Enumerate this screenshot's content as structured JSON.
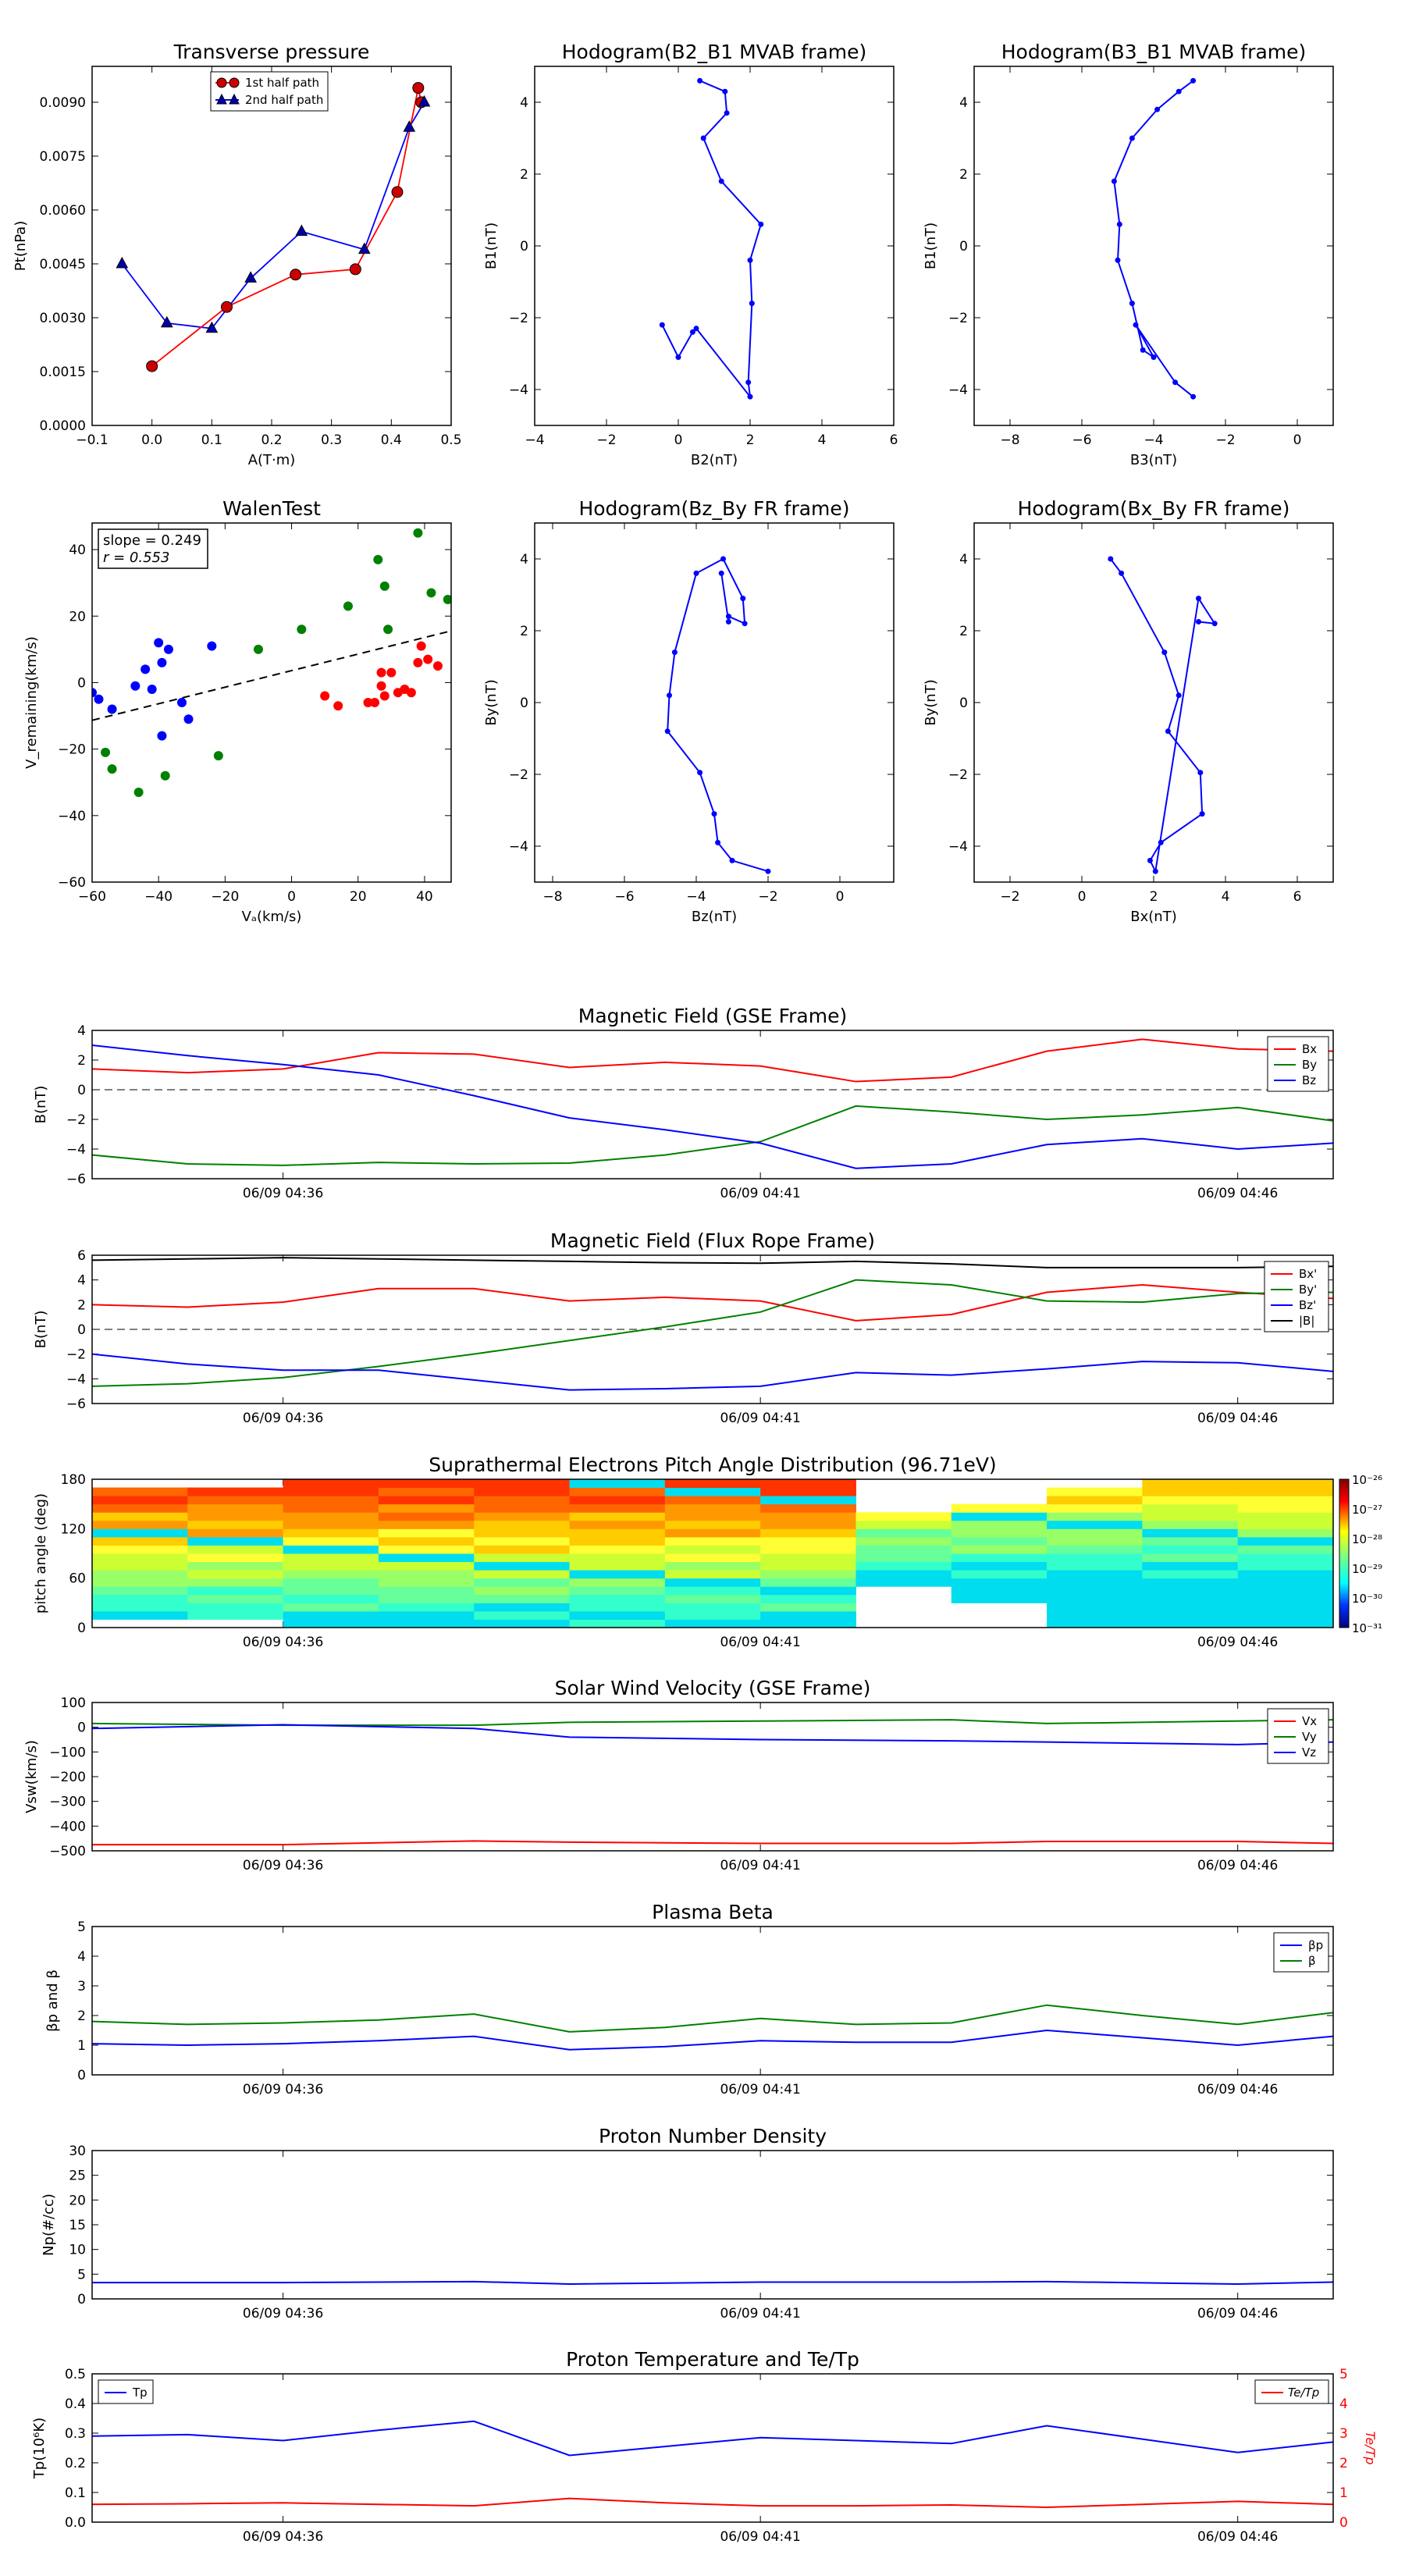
{
  "colors": {
    "red": "#ff0000",
    "green": "#008000",
    "blue": "#0000ff",
    "black": "#000000",
    "first_half": "#cc0000",
    "second_half": "#0000aa"
  },
  "panels": {
    "transverse": {
      "title": "Transverse pressure",
      "xlabel": "A(T·m)",
      "ylabel": "Pt(nPa)",
      "legend": [
        "1st half path",
        "2nd half path"
      ],
      "xticks": [
        "−0.1",
        "0.0",
        "0.1",
        "0.2",
        "0.3",
        "0.4",
        "0.5"
      ],
      "yticks": [
        "0.0000",
        "0.0015",
        "0.0030",
        "0.0045",
        "0.0060",
        "0.0075",
        "0.0090"
      ]
    },
    "hodo_b2b1": {
      "title": "Hodogram(B2_B1 MVAB frame)",
      "xlabel": "B2(nT)",
      "ylabel": "B1(nT)",
      "xticks": [
        "−4",
        "−2",
        "0",
        "2",
        "4",
        "6"
      ],
      "yticks": [
        "−4",
        "−2",
        "0",
        "2",
        "4"
      ]
    },
    "hodo_b3b1": {
      "title": "Hodogram(B3_B1 MVAB frame)",
      "xlabel": "B3(nT)",
      "ylabel": "B1(nT)",
      "xticks": [
        "−8",
        "−6",
        "−4",
        "−2",
        "0"
      ],
      "yticks": [
        "−4",
        "−2",
        "0",
        "2",
        "4"
      ]
    },
    "walen": {
      "title": "WalenTest",
      "xlabel": "Vₐ(km/s)",
      "ylabel": "V_remaining(km/s)",
      "annot1": "slope = 0.249",
      "annot2": "r = 0.553",
      "xticks": [
        "−60",
        "−40",
        "−20",
        "0",
        "20",
        "40"
      ],
      "yticks": [
        "−60",
        "−40",
        "−20",
        "0",
        "20",
        "40"
      ]
    },
    "hodo_bzby": {
      "title": "Hodogram(Bz_By FR frame)",
      "xlabel": "Bz(nT)",
      "ylabel": "By(nT)",
      "xticks": [
        "−8",
        "−6",
        "−4",
        "−2",
        "0"
      ],
      "yticks": [
        "−4",
        "−2",
        "0",
        "2",
        "4"
      ]
    },
    "hodo_bxby": {
      "title": "Hodogram(Bx_By FR frame)",
      "xlabel": "Bx(nT)",
      "ylabel": "By(nT)",
      "xticks": [
        "−2",
        "0",
        "2",
        "4",
        "6"
      ],
      "yticks": [
        "−4",
        "−2",
        "0",
        "2",
        "4"
      ]
    },
    "bgse": {
      "title": "Magnetic Field (GSE Frame)",
      "ylabel": "B(nT)",
      "yticks": [
        "−6",
        "−4",
        "−2",
        "0",
        "2",
        "4"
      ],
      "legend": [
        "Bx",
        "By",
        "Bz"
      ]
    },
    "bfr": {
      "title": "Magnetic Field (Flux Rope Frame)",
      "ylabel": "B(nT)",
      "yticks": [
        "−6",
        "−4",
        "−2",
        "0",
        "2",
        "4",
        "6"
      ],
      "legend": [
        "Bx'",
        "By'",
        "Bz'",
        "|B|"
      ]
    },
    "pad": {
      "title": "Suprathermal Electrons Pitch Angle Distribution (96.71eV)",
      "ylabel": "pitch angle (deg)",
      "yticks": [
        "0",
        "60",
        "120",
        "180"
      ],
      "cbar": [
        "10⁻²⁶",
        "10⁻²⁷",
        "10⁻²⁸",
        "10⁻²⁹",
        "10⁻³⁰",
        "10⁻³¹"
      ]
    },
    "vsw": {
      "title": "Solar Wind Velocity (GSE Frame)",
      "ylabel": "Vsw(km/s)",
      "yticks": [
        "−500",
        "−400",
        "−300",
        "−200",
        "−100",
        "0",
        "100"
      ],
      "legend": [
        "Vx",
        "Vy",
        "Vz"
      ]
    },
    "beta": {
      "title": "Plasma Beta",
      "ylabel": "βp and β",
      "yticks": [
        "0",
        "1",
        "2",
        "3",
        "4",
        "5"
      ],
      "legend": [
        "βp",
        "β"
      ]
    },
    "np": {
      "title": "Proton Number Density",
      "ylabel": "Np(#/cc)",
      "yticks": [
        "0",
        "5",
        "10",
        "15",
        "20",
        "25",
        "30"
      ]
    },
    "tp": {
      "title": "Proton Temperature and Te/Tp",
      "ylabel": "Tp(10⁶K)",
      "ylabel2": "Te/Tp",
      "yticks": [
        "0.0",
        "0.1",
        "0.2",
        "0.3",
        "0.4",
        "0.5"
      ],
      "yticks2": [
        "0",
        "1",
        "2",
        "3",
        "4",
        "5"
      ],
      "legend": [
        "Tp"
      ],
      "legend2": [
        "Te/Tp"
      ]
    }
  },
  "time_ticks": [
    "06/09 04:36",
    "06/09 04:41",
    "06/09 04:46"
  ],
  "chart_data": [
    {
      "type": "scatter",
      "name": "transverse",
      "xlim": [
        -0.1,
        0.5
      ],
      "ylim": [
        0,
        0.01
      ],
      "series": [
        {
          "name": "1st half path",
          "x": [
            0.0,
            0.125,
            0.24,
            0.34,
            0.41,
            0.445,
            0.45
          ],
          "y": [
            0.00165,
            0.0033,
            0.0042,
            0.00435,
            0.0065,
            0.0094,
            0.009
          ]
        },
        {
          "name": "2nd half path",
          "x": [
            -0.05,
            0.025,
            0.1,
            0.165,
            0.25,
            0.355,
            0.43,
            0.455
          ],
          "y": [
            0.0045,
            0.00285,
            0.0027,
            0.0041,
            0.0054,
            0.0049,
            0.0083,
            0.009
          ]
        }
      ]
    },
    {
      "type": "line",
      "name": "hodo_b2b1",
      "xlim": [
        -4,
        6
      ],
      "ylim": [
        -5,
        5
      ],
      "x": [
        0.6,
        1.3,
        1.35,
        0.7,
        1.2,
        2.3,
        2.0,
        2.05,
        1.95,
        2.0,
        0.5,
        0.4,
        0.0,
        -0.45
      ],
      "y": [
        4.6,
        4.3,
        3.7,
        3.0,
        1.8,
        0.6,
        -0.4,
        -1.6,
        -3.8,
        -4.2,
        -2.3,
        -2.4,
        -3.1,
        -2.2
      ]
    },
    {
      "type": "line",
      "name": "hodo_b3b1",
      "xlim": [
        -9,
        1
      ],
      "ylim": [
        -5,
        5
      ],
      "x": [
        -2.9,
        -3.3,
        -3.9,
        -4.6,
        -5.1,
        -4.95,
        -5.0,
        -4.6,
        -4.3,
        -4.0,
        -4.5,
        -3.4,
        -2.9
      ],
      "y": [
        4.6,
        4.3,
        3.8,
        3.0,
        1.8,
        0.6,
        -0.4,
        -1.6,
        -2.9,
        -3.1,
        -2.2,
        -3.8,
        -4.2
      ]
    },
    {
      "type": "scatter",
      "name": "walen",
      "xlim": [
        -60,
        48
      ],
      "ylim": [
        -60,
        48
      ],
      "fit": {
        "slope": 0.249,
        "intercept": 3.6
      },
      "series": [
        {
          "name": "",
          "x": [
            -60,
            -58,
            -54,
            -47,
            -44,
            -42,
            -40,
            -39,
            -37,
            -33,
            -31,
            -39,
            -24
          ],
          "y": [
            -3,
            -5,
            -8,
            -1,
            4,
            -2,
            12,
            6,
            10,
            -6,
            -11,
            -16,
            11
          ]
        },
        {
          "name": "",
          "x": [
            -56,
            -54,
            -38,
            -46,
            -22,
            -10,
            3,
            17,
            26,
            28,
            29,
            38,
            42,
            47
          ],
          "y": [
            -21,
            -26,
            -28,
            -33,
            -22,
            10,
            16,
            23,
            37,
            29,
            16,
            45,
            27,
            25
          ]
        },
        {
          "name": "",
          "x": [
            10,
            14,
            23,
            25,
            27,
            28,
            30,
            32,
            34,
            36,
            38,
            39,
            41,
            44,
            27
          ],
          "y": [
            -4,
            -7,
            -6,
            -6,
            -1,
            -4,
            3,
            -3,
            -2,
            -3,
            6,
            11,
            7,
            5,
            3
          ]
        }
      ]
    },
    {
      "type": "line",
      "name": "hodo_bzby",
      "xlim": [
        -8.5,
        1.5
      ],
      "ylim": [
        -5,
        5
      ],
      "x": [
        -2.0,
        -3.0,
        -3.4,
        -3.5,
        -3.9,
        -4.8,
        -4.75,
        -4.6,
        -4.0,
        -3.25,
        -2.7,
        -2.65,
        -3.1,
        -3.1,
        -3.3
      ],
      "y": [
        -4.7,
        -4.4,
        -3.9,
        -3.1,
        -1.95,
        -0.8,
        0.2,
        1.4,
        3.6,
        4.0,
        2.9,
        2.2,
        2.4,
        2.25,
        3.6
      ]
    },
    {
      "type": "line",
      "name": "hodo_bxby",
      "xlim": [
        -3,
        7
      ],
      "ylim": [
        -5,
        5
      ],
      "x": [
        0.8,
        1.1,
        2.3,
        2.7,
        2.4,
        3.3,
        3.35,
        2.2,
        1.9,
        2.05,
        3.25,
        3.7,
        3.25
      ],
      "y": [
        4.0,
        3.6,
        1.4,
        0.2,
        -0.8,
        -1.95,
        -3.1,
        -3.9,
        -4.4,
        -4.7,
        2.9,
        2.2,
        2.25
      ]
    },
    {
      "type": "line",
      "name": "bgse",
      "xlim": [
        0,
        13
      ],
      "ylim": [
        -6,
        4
      ],
      "x": [
        0,
        1,
        2,
        3,
        4,
        5,
        6,
        7,
        8,
        9,
        10,
        11,
        12,
        13
      ],
      "series": [
        {
          "name": "Bx",
          "values": [
            1.4,
            1.15,
            1.4,
            2.5,
            2.4,
            1.5,
            1.85,
            1.6,
            0.55,
            0.85,
            2.6,
            3.4,
            2.75,
            2.6
          ]
        },
        {
          "name": "By",
          "values": [
            -4.4,
            -5.0,
            -5.1,
            -4.9,
            -5.0,
            -4.95,
            -4.4,
            -3.5,
            -1.1,
            -1.5,
            -2.0,
            -1.7,
            -1.2,
            -2.1
          ]
        },
        {
          "name": "Bz",
          "values": [
            3.0,
            2.3,
            1.7,
            1.0,
            -0.4,
            -1.9,
            -2.7,
            -3.6,
            -5.3,
            -5.0,
            -3.7,
            -3.3,
            -4.0,
            -3.6
          ]
        }
      ]
    },
    {
      "type": "line",
      "name": "bfr",
      "xlim": [
        0,
        13
      ],
      "ylim": [
        -6,
        6
      ],
      "x": [
        0,
        1,
        2,
        3,
        4,
        5,
        6,
        7,
        8,
        9,
        10,
        11,
        12,
        13
      ],
      "series": [
        {
          "name": "Bx'",
          "values": [
            2.0,
            1.8,
            2.2,
            3.3,
            3.3,
            2.3,
            2.6,
            2.3,
            0.7,
            1.2,
            3.0,
            3.6,
            3.0,
            2.5
          ]
        },
        {
          "name": "By'",
          "values": [
            -4.6,
            -4.4,
            -3.9,
            -3.0,
            -2.0,
            -0.9,
            0.2,
            1.4,
            4.0,
            3.6,
            2.3,
            2.2,
            2.9,
            3.0
          ]
        },
        {
          "name": "Bz'",
          "values": [
            -2.0,
            -2.8,
            -3.3,
            -3.3,
            -4.1,
            -4.9,
            -4.8,
            -4.6,
            -3.5,
            -3.7,
            -3.2,
            -2.6,
            -2.7,
            -3.4
          ]
        },
        {
          "name": "|B|",
          "values": [
            5.6,
            5.7,
            5.8,
            5.7,
            5.6,
            5.5,
            5.4,
            5.35,
            5.5,
            5.3,
            5.0,
            5.0,
            5.0,
            5.1
          ]
        }
      ]
    },
    {
      "type": "heatmap",
      "name": "pad",
      "xlim": [
        0,
        13
      ],
      "ylim": [
        0,
        180
      ]
    },
    {
      "type": "line",
      "name": "vsw",
      "xlim": [
        0,
        13
      ],
      "ylim": [
        -500,
        100
      ],
      "x": [
        0,
        2,
        4,
        5,
        7,
        9,
        10,
        12,
        13
      ],
      "series": [
        {
          "name": "Vx",
          "values": [
            -475,
            -475,
            -460,
            -465,
            -470,
            -470,
            -462,
            -462,
            -470
          ]
        },
        {
          "name": "Vy",
          "values": [
            15,
            8,
            8,
            20,
            25,
            30,
            15,
            25,
            30
          ]
        },
        {
          "name": "Vz",
          "values": [
            -5,
            10,
            -5,
            -40,
            -50,
            -55,
            -60,
            -70,
            -60
          ]
        }
      ]
    },
    {
      "type": "line",
      "name": "beta",
      "xlim": [
        0,
        13
      ],
      "ylim": [
        0,
        5
      ],
      "x": [
        0,
        1,
        2,
        3,
        4,
        5,
        6,
        7,
        8,
        9,
        10,
        11,
        12,
        13
      ],
      "series": [
        {
          "name": "βp",
          "values": [
            1.05,
            1.0,
            1.05,
            1.15,
            1.3,
            0.85,
            0.95,
            1.15,
            1.1,
            1.1,
            1.5,
            1.25,
            1.0,
            1.3
          ]
        },
        {
          "name": "β",
          "values": [
            1.8,
            1.7,
            1.75,
            1.85,
            2.05,
            1.45,
            1.6,
            1.9,
            1.7,
            1.75,
            2.35,
            2.0,
            1.7,
            2.1
          ]
        }
      ]
    },
    {
      "type": "line",
      "name": "np",
      "xlim": [
        0,
        13
      ],
      "ylim": [
        0,
        30
      ],
      "x": [
        0,
        2,
        4,
        5,
        7,
        9,
        10,
        12,
        13
      ],
      "series": [
        {
          "name": "",
          "values": [
            3.3,
            3.3,
            3.5,
            3.0,
            3.4,
            3.4,
            3.5,
            3.0,
            3.4
          ]
        }
      ]
    },
    {
      "type": "line",
      "name": "tp",
      "xlim": [
        0,
        13
      ],
      "ylim": [
        0,
        0.5
      ],
      "ylim2": [
        0,
        5
      ],
      "x": [
        0,
        1,
        2,
        3,
        4,
        5,
        6,
        7,
        8,
        9,
        10,
        11,
        12,
        13
      ],
      "series": [
        {
          "name": "Tp",
          "values": [
            0.29,
            0.295,
            0.275,
            0.31,
            0.34,
            0.225,
            0.255,
            0.285,
            0.275,
            0.265,
            0.325,
            0.28,
            0.235,
            0.27
          ],
          "axis": "left"
        },
        {
          "name": "Te/Tp",
          "values": [
            0.6,
            0.62,
            0.65,
            0.6,
            0.55,
            0.8,
            0.65,
            0.55,
            0.55,
            0.58,
            0.5,
            0.6,
            0.7,
            0.6
          ],
          "axis": "right"
        }
      ]
    }
  ]
}
